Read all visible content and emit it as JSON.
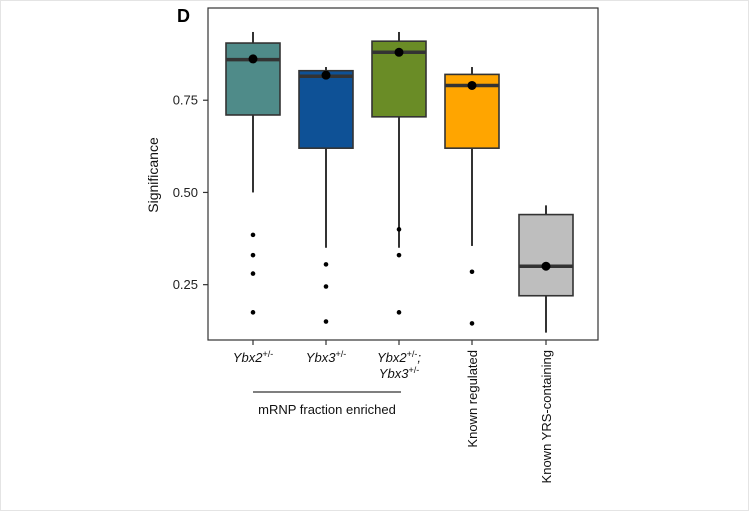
{
  "panel_label": "D",
  "chart_data": {
    "type": "box",
    "title": "",
    "xlabel": "",
    "ylabel": "Significance",
    "ylim": [
      0.1,
      1.0
    ],
    "yticks": [
      0.25,
      0.5,
      0.75
    ],
    "ytick_labels": [
      "0.25",
      "0.50",
      "0.75"
    ],
    "group_annotation": {
      "label": "mRNP fraction enriched",
      "spans_categories": [
        0,
        2
      ]
    },
    "categories": [
      {
        "label_lines": [
          [
            {
              "t": "Ybx2",
              "italic": true
            },
            {
              "t": "+/-",
              "sup": true
            }
          ]
        ],
        "rotated_label": "",
        "color": "#4f8b89",
        "whisker_low": 0.5,
        "q1": 0.71,
        "median": 0.86,
        "q3": 0.905,
        "whisker_high": 0.935,
        "mean": 0.862,
        "outliers": [
          0.385,
          0.33,
          0.28,
          0.175
        ]
      },
      {
        "label_lines": [
          [
            {
              "t": "Ybx3",
              "italic": true
            },
            {
              "t": "+/-",
              "sup": true
            }
          ]
        ],
        "rotated_label": "",
        "color": "#0e5196",
        "whisker_low": 0.35,
        "q1": 0.62,
        "median": 0.815,
        "q3": 0.83,
        "whisker_high": 0.84,
        "mean": 0.818,
        "outliers": [
          0.305,
          0.245,
          0.15
        ]
      },
      {
        "label_lines": [
          [
            {
              "t": "Ybx2",
              "italic": true
            },
            {
              "t": "+/-",
              "sup": true
            },
            {
              "t": ";",
              "italic": true
            }
          ],
          [
            {
              "t": "Ybx3",
              "italic": true
            },
            {
              "t": "+/-",
              "sup": true
            }
          ]
        ],
        "rotated_label": "",
        "color": "#6a8c26",
        "whisker_low": 0.35,
        "q1": 0.705,
        "median": 0.88,
        "q3": 0.91,
        "whisker_high": 0.935,
        "mean": 0.88,
        "outliers": [
          0.4,
          0.33,
          0.175
        ]
      },
      {
        "label_lines": [],
        "rotated_label": "Known regulated",
        "color": "#ffa500",
        "whisker_low": 0.355,
        "q1": 0.62,
        "median": 0.79,
        "q3": 0.82,
        "whisker_high": 0.84,
        "mean": 0.79,
        "outliers": [
          0.285,
          0.145
        ]
      },
      {
        "label_lines": [],
        "rotated_label": "Known YRS-containing",
        "color": "#bebebe",
        "whisker_low": 0.12,
        "q1": 0.22,
        "median": 0.3,
        "q3": 0.44,
        "whisker_high": 0.465,
        "mean": 0.3,
        "outliers": []
      }
    ]
  }
}
